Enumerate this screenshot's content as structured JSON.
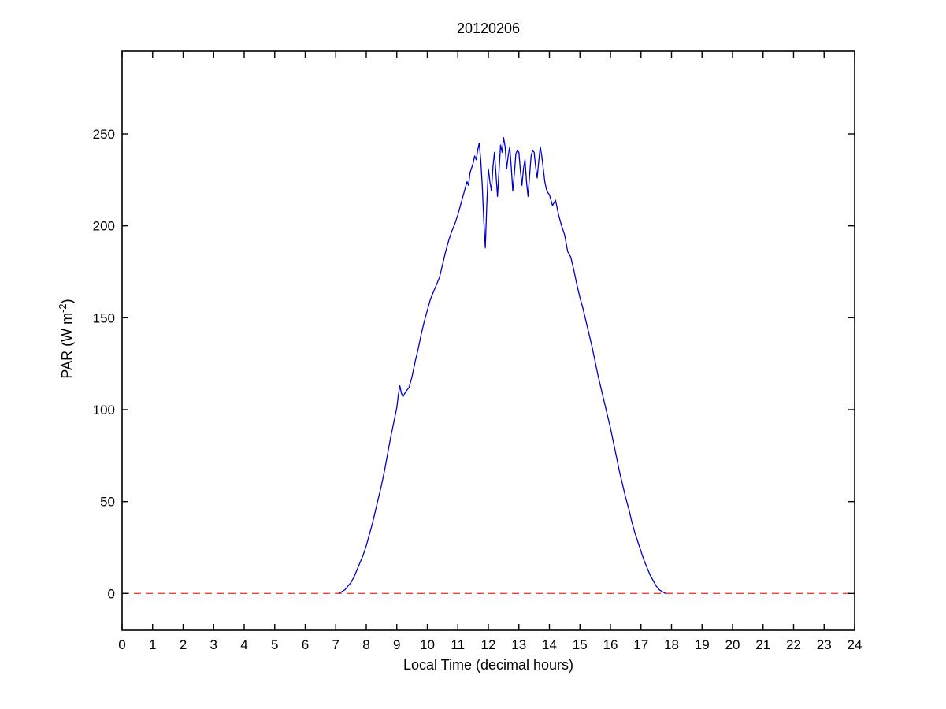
{
  "page": {
    "background": "#ffffff"
  },
  "chart_data": {
    "type": "line",
    "title": "20120206",
    "xlabel": "Local Time (decimal hours)",
    "ylabel": {
      "text": "PAR (W m",
      "sup": "-2",
      "close": ")"
    },
    "xlim": [
      0,
      24
    ],
    "ylim": [
      -20,
      295
    ],
    "xticks": [
      0,
      1,
      2,
      3,
      4,
      5,
      6,
      7,
      8,
      9,
      10,
      11,
      12,
      13,
      14,
      15,
      16,
      17,
      18,
      19,
      20,
      21,
      22,
      23,
      24
    ],
    "yticks": [
      0,
      50,
      100,
      150,
      200,
      250
    ],
    "grid": false,
    "legend": "none",
    "axis_color": "#000000",
    "series": [
      {
        "name": "PAR",
        "color": "#0000cc",
        "points": [
          [
            7.0,
            0
          ],
          [
            7.1,
            0
          ],
          [
            7.2,
            1
          ],
          [
            7.3,
            2
          ],
          [
            7.4,
            4
          ],
          [
            7.5,
            6
          ],
          [
            7.6,
            9
          ],
          [
            7.7,
            13
          ],
          [
            7.8,
            17
          ],
          [
            7.9,
            21
          ],
          [
            8.0,
            26
          ],
          [
            8.1,
            32
          ],
          [
            8.2,
            38
          ],
          [
            8.3,
            45
          ],
          [
            8.4,
            52
          ],
          [
            8.5,
            59
          ],
          [
            8.6,
            67
          ],
          [
            8.7,
            76
          ],
          [
            8.8,
            85
          ],
          [
            8.9,
            93
          ],
          [
            9.0,
            101
          ],
          [
            9.05,
            108
          ],
          [
            9.1,
            113
          ],
          [
            9.15,
            109
          ],
          [
            9.2,
            107
          ],
          [
            9.3,
            110
          ],
          [
            9.4,
            112
          ],
          [
            9.5,
            118
          ],
          [
            9.6,
            126
          ],
          [
            9.7,
            133
          ],
          [
            9.8,
            141
          ],
          [
            9.9,
            148
          ],
          [
            10.0,
            154
          ],
          [
            10.1,
            160
          ],
          [
            10.2,
            164
          ],
          [
            10.3,
            168
          ],
          [
            10.4,
            172
          ],
          [
            10.5,
            179
          ],
          [
            10.6,
            186
          ],
          [
            10.7,
            192
          ],
          [
            10.8,
            197
          ],
          [
            10.9,
            201
          ],
          [
            11.0,
            206
          ],
          [
            11.1,
            212
          ],
          [
            11.2,
            218
          ],
          [
            11.3,
            224
          ],
          [
            11.35,
            222
          ],
          [
            11.4,
            229
          ],
          [
            11.5,
            234
          ],
          [
            11.55,
            238
          ],
          [
            11.6,
            236
          ],
          [
            11.65,
            241
          ],
          [
            11.7,
            245
          ],
          [
            11.75,
            236
          ],
          [
            11.8,
            222
          ],
          [
            11.85,
            203
          ],
          [
            11.9,
            188
          ],
          [
            11.95,
            212
          ],
          [
            12.0,
            231
          ],
          [
            12.05,
            224
          ],
          [
            12.1,
            219
          ],
          [
            12.15,
            232
          ],
          [
            12.2,
            240
          ],
          [
            12.25,
            228
          ],
          [
            12.3,
            216
          ],
          [
            12.35,
            230
          ],
          [
            12.4,
            244
          ],
          [
            12.45,
            240
          ],
          [
            12.5,
            248
          ],
          [
            12.55,
            243
          ],
          [
            12.6,
            231
          ],
          [
            12.65,
            238
          ],
          [
            12.7,
            243
          ],
          [
            12.75,
            232
          ],
          [
            12.8,
            219
          ],
          [
            12.85,
            228
          ],
          [
            12.9,
            239
          ],
          [
            12.95,
            241
          ],
          [
            13.0,
            240
          ],
          [
            13.05,
            230
          ],
          [
            13.1,
            222
          ],
          [
            13.15,
            231
          ],
          [
            13.2,
            236
          ],
          [
            13.25,
            224
          ],
          [
            13.3,
            216
          ],
          [
            13.35,
            227
          ],
          [
            13.4,
            238
          ],
          [
            13.45,
            241
          ],
          [
            13.5,
            240
          ],
          [
            13.55,
            232
          ],
          [
            13.6,
            226
          ],
          [
            13.65,
            235
          ],
          [
            13.7,
            243
          ],
          [
            13.75,
            238
          ],
          [
            13.8,
            231
          ],
          [
            13.85,
            224
          ],
          [
            13.9,
            220
          ],
          [
            13.95,
            218
          ],
          [
            14.0,
            217
          ],
          [
            14.1,
            211
          ],
          [
            14.2,
            214
          ],
          [
            14.3,
            206
          ],
          [
            14.4,
            200
          ],
          [
            14.5,
            195
          ],
          [
            14.6,
            186
          ],
          [
            14.7,
            183
          ],
          [
            14.8,
            176
          ],
          [
            14.9,
            168
          ],
          [
            15.0,
            161
          ],
          [
            15.1,
            155
          ],
          [
            15.2,
            148
          ],
          [
            15.3,
            141
          ],
          [
            15.4,
            134
          ],
          [
            15.5,
            126
          ],
          [
            15.6,
            118
          ],
          [
            15.7,
            111
          ],
          [
            15.8,
            104
          ],
          [
            15.9,
            97
          ],
          [
            16.0,
            90
          ],
          [
            16.1,
            82
          ],
          [
            16.2,
            74
          ],
          [
            16.3,
            66
          ],
          [
            16.4,
            59
          ],
          [
            16.5,
            52
          ],
          [
            16.6,
            46
          ],
          [
            16.7,
            39
          ],
          [
            16.8,
            33
          ],
          [
            16.9,
            28
          ],
          [
            17.0,
            23
          ],
          [
            17.1,
            18
          ],
          [
            17.2,
            14
          ],
          [
            17.3,
            10
          ],
          [
            17.4,
            7
          ],
          [
            17.5,
            4
          ],
          [
            17.6,
            2
          ],
          [
            17.7,
            1
          ],
          [
            17.8,
            0
          ],
          [
            17.9,
            0
          ],
          [
            18.0,
            0
          ]
        ]
      }
    ],
    "reference_line": {
      "y": 0,
      "color": "#ee4433",
      "style": "dashed"
    }
  }
}
